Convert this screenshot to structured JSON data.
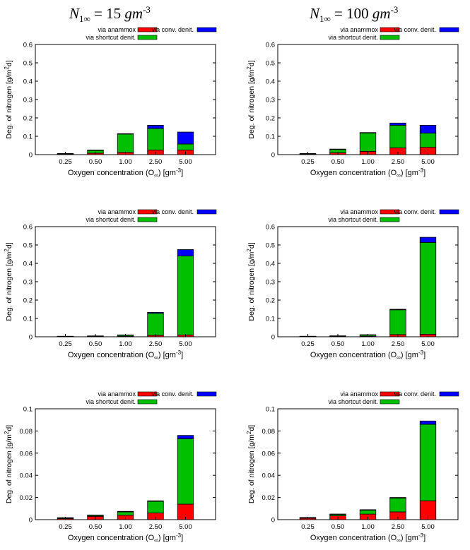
{
  "column_titles": [
    {
      "prefix": "N",
      "sub": "1∞",
      "rest": " = ",
      "value": "15",
      "unit": " gm",
      "exp": "-3"
    },
    {
      "prefix": "N",
      "sub": "1∞",
      "rest": " = ",
      "value": "100",
      "unit": " gm",
      "exp": "-3"
    }
  ],
  "colors": {
    "anammox": "#ff0000",
    "shortcut": "#00c000",
    "conv": "#0000ff"
  },
  "chart_data": [
    {
      "type": "bar",
      "stacked": true,
      "categories": [
        "0.25",
        "0.50",
        "1.00",
        "2.50",
        "5.00"
      ],
      "series": [
        {
          "name": "via anammox",
          "values": [
            0.002,
            0.008,
            0.012,
            0.025,
            0.025
          ]
        },
        {
          "name": "via shortcut denit.",
          "values": [
            0.002,
            0.015,
            0.1,
            0.117,
            0.033
          ]
        },
        {
          "name": "via conv. denit.",
          "values": [
            0.0,
            0.002,
            0.002,
            0.018,
            0.065
          ]
        }
      ],
      "xlabel": "Oxygen concentration (O∞) [gm-3]",
      "ylabel": "Deg. of nitrogen [g/m2d]",
      "ylim": [
        0,
        0.6
      ],
      "yticks": [
        "0",
        "0.1",
        "0.2",
        "0.3",
        "0.4",
        "0.5",
        "0.6"
      ]
    },
    {
      "type": "bar",
      "stacked": true,
      "categories": [
        "0.25",
        "0.50",
        "1.00",
        "2.50",
        "5.00"
      ],
      "series": [
        {
          "name": "via anammox",
          "values": [
            0.002,
            0.01,
            0.018,
            0.037,
            0.04
          ]
        },
        {
          "name": "via shortcut denit.",
          "values": [
            0.002,
            0.018,
            0.1,
            0.123,
            0.077
          ]
        },
        {
          "name": "via conv. denit.",
          "values": [
            0.0,
            0.002,
            0.002,
            0.012,
            0.043
          ]
        }
      ],
      "xlabel": "Oxygen concentration (O∞) [gm-3]",
      "ylabel": "Deg. of nitrogen [g/m2d]",
      "ylim": [
        0,
        0.6
      ],
      "yticks": [
        "0",
        "0.1",
        "0.2",
        "0.3",
        "0.4",
        "0.5",
        "0.6"
      ]
    },
    {
      "type": "bar",
      "stacked": true,
      "categories": [
        "0.25",
        "0.50",
        "1.00",
        "2.50",
        "5.00"
      ],
      "series": [
        {
          "name": "via anammox",
          "values": [
            0.0003,
            0.001,
            0.002,
            0.008,
            0.01
          ]
        },
        {
          "name": "via shortcut denit.",
          "values": [
            0.0002,
            0.0015,
            0.006,
            0.12,
            0.43
          ]
        },
        {
          "name": "via conv. denit.",
          "values": [
            0.0,
            0.0005,
            0.001,
            0.005,
            0.035
          ]
        }
      ],
      "xlabel": "Oxygen concentration (O∞) [gm-3]",
      "ylabel": "Deg. of nitrogen [g/m2d]",
      "ylim": [
        0,
        0.6
      ],
      "yticks": [
        "0",
        "0.1",
        "0.2",
        "0.3",
        "0.4",
        "0.5",
        "0.6"
      ]
    },
    {
      "type": "bar",
      "stacked": true,
      "categories": [
        "0.25",
        "0.50",
        "1.00",
        "2.50",
        "5.00"
      ],
      "series": [
        {
          "name": "via anammox",
          "values": [
            0.0003,
            0.001,
            0.003,
            0.012,
            0.014
          ]
        },
        {
          "name": "via shortcut denit.",
          "values": [
            0.0003,
            0.002,
            0.006,
            0.135,
            0.5
          ]
        },
        {
          "name": "via conv. denit.",
          "values": [
            0.0,
            0.0005,
            0.001,
            0.003,
            0.028
          ]
        }
      ],
      "xlabel": "Oxygen concentration (O∞) [gm-3]",
      "ylabel": "Deg. of nitrogen [g/m2d]",
      "ylim": [
        0,
        0.6
      ],
      "yticks": [
        "0",
        "0.1",
        "0.2",
        "0.3",
        "0.4",
        "0.5",
        "0.6"
      ]
    },
    {
      "type": "bar",
      "stacked": true,
      "categories": [
        "0.25",
        "0.50",
        "1.00",
        "2.50",
        "5.00"
      ],
      "series": [
        {
          "name": "via anammox",
          "values": [
            0.001,
            0.003,
            0.004,
            0.006,
            0.014
          ]
        },
        {
          "name": "via shortcut denit.",
          "values": [
            0.0004,
            0.0008,
            0.003,
            0.0105,
            0.059
          ]
        },
        {
          "name": "via conv. denit.",
          "values": [
            0.0001,
            0.0002,
            0.0005,
            0.0005,
            0.003
          ]
        }
      ],
      "xlabel": "Oxygen concentration (O∞) [gm-3]",
      "ylabel": "Deg. of nitrogen [g/m2d]",
      "ylim": [
        0,
        0.1
      ],
      "yticks": [
        "0",
        "0.02",
        "0.04",
        "0.06",
        "0.08",
        "0.1"
      ]
    },
    {
      "type": "bar",
      "stacked": true,
      "categories": [
        "0.25",
        "0.50",
        "1.00",
        "2.50",
        "5.00"
      ],
      "series": [
        {
          "name": "via anammox",
          "values": [
            0.0012,
            0.0035,
            0.005,
            0.007,
            0.017
          ]
        },
        {
          "name": "via shortcut denit.",
          "values": [
            0.0004,
            0.0012,
            0.0035,
            0.0125,
            0.069
          ]
        },
        {
          "name": "via conv. denit.",
          "values": [
            0.0001,
            0.0003,
            0.0005,
            0.0005,
            0.003
          ]
        }
      ],
      "xlabel": "Oxygen concentration (O∞) [gm-3]",
      "ylabel": "Deg. of nitrogen [g/m2d]",
      "ylim": [
        0,
        0.1
      ],
      "yticks": [
        "0",
        "0.02",
        "0.04",
        "0.06",
        "0.08",
        "0.1"
      ]
    }
  ]
}
